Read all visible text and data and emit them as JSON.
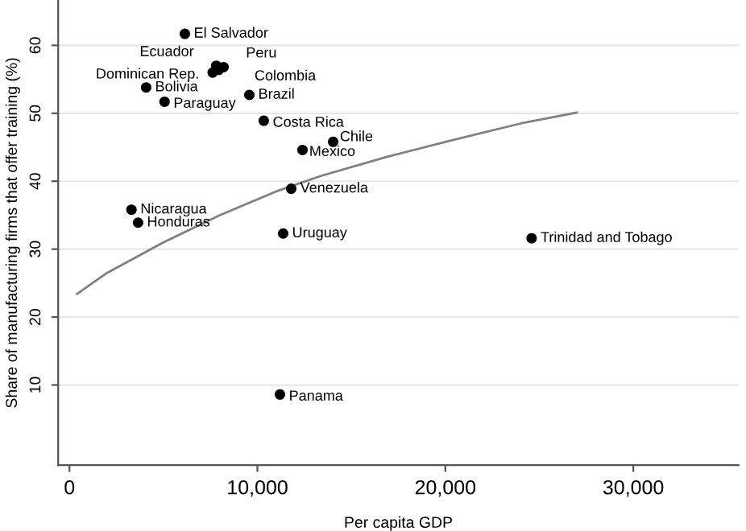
{
  "chart_data": {
    "type": "scatter",
    "xlabel": "Per capita GDP",
    "ylabel": "Share of manufacturing firms that offer training (%)",
    "xlim": [
      -600,
      35600
    ],
    "ylim": [
      -1.8,
      66.6
    ],
    "xticks": [
      {
        "value": 0,
        "label": "0"
      },
      {
        "value": 10000,
        "label": "10,000"
      },
      {
        "value": 20000,
        "label": "20,000"
      },
      {
        "value": 30000,
        "label": "30,000"
      }
    ],
    "yticks": [
      10,
      20,
      30,
      40,
      50,
      60
    ],
    "grid": "y",
    "marker": "circle",
    "series": [
      {
        "color": "#000000",
        "x": [
          6140,
          7810,
          7620,
          8200,
          7940,
          4080,
          5060,
          9570,
          10340,
          14030,
          12400,
          11800,
          3300,
          3650,
          11370,
          24590,
          11200
        ],
        "values": [
          61.7,
          57.0,
          56.0,
          56.8,
          56.4,
          53.8,
          51.7,
          52.7,
          48.9,
          45.8,
          44.6,
          38.9,
          35.8,
          33.9,
          32.3,
          31.6,
          8.6
        ]
      },
      {
        "type": "line",
        "color": "#808080",
        "line_style": "solid",
        "marker": "none",
        "x": [
          400,
          2000,
          5000,
          8000,
          11000,
          13400,
          16900,
          20300,
          24000,
          27000
        ],
        "values": [
          23.4,
          26.5,
          31.0,
          35.0,
          38.5,
          40.8,
          43.6,
          46.0,
          48.5,
          50.1
        ]
      }
    ],
    "annotations": [
      {
        "text": "El Salvador",
        "x": 6140,
        "y": 61.7
      },
      {
        "text": "Ecuador",
        "x": 7810,
        "y": 57.0
      },
      {
        "text": "Dominican Rep.",
        "x": 7620,
        "y": 56.0
      },
      {
        "text": "Peru",
        "x": 8200,
        "y": 56.8
      },
      {
        "text": "Colombia",
        "x": 7940,
        "y": 56.4
      },
      {
        "text": "Bolivia",
        "x": 4080,
        "y": 53.8
      },
      {
        "text": "Paraguay",
        "x": 5060,
        "y": 51.7
      },
      {
        "text": "Brazil",
        "x": 9570,
        "y": 52.7
      },
      {
        "text": "Costa Rica",
        "x": 10340,
        "y": 48.9
      },
      {
        "text": "Chile",
        "x": 14030,
        "y": 45.8
      },
      {
        "text": "Mexico",
        "x": 12400,
        "y": 44.6
      },
      {
        "text": "Venezuela",
        "x": 11800,
        "y": 38.9
      },
      {
        "text": "Nicaragua",
        "x": 3300,
        "y": 35.8
      },
      {
        "text": "Honduras",
        "x": 3650,
        "y": 33.9
      },
      {
        "text": "Uruguay",
        "x": 11370,
        "y": 32.3
      },
      {
        "text": "Trinidad and Tobago",
        "x": 24590,
        "y": 31.6
      },
      {
        "text": "Panama",
        "x": 11200,
        "y": 8.6
      }
    ]
  }
}
